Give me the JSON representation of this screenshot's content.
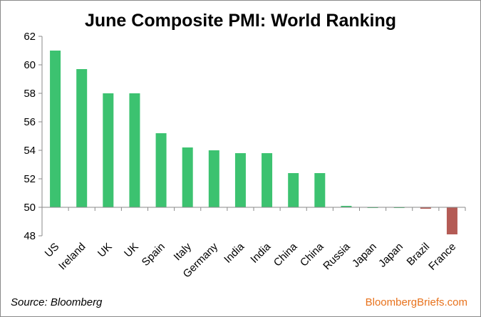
{
  "chart_data": {
    "type": "bar",
    "title": "June Composite PMI: World Ranking",
    "xlabel": "",
    "ylabel": "",
    "ylim": [
      48,
      62
    ],
    "baseline": 50,
    "yticks": [
      48,
      50,
      52,
      54,
      56,
      58,
      60,
      62
    ],
    "grid": false,
    "categories": [
      "US",
      "Ireland",
      "UK",
      "UK",
      "Spain",
      "Italy",
      "Germany",
      "India",
      "India",
      "China",
      "China",
      "Russia",
      "Japan",
      "Japan",
      "Brazil",
      "France"
    ],
    "values": [
      61.0,
      59.7,
      58.0,
      58.0,
      55.2,
      54.2,
      54.0,
      53.8,
      53.8,
      52.4,
      52.4,
      50.1,
      50.0,
      50.0,
      49.9,
      48.1
    ],
    "colors": {
      "above": "#3cc270",
      "below": "#b45b55"
    }
  },
  "footer": {
    "source": "Source:  Bloomberg",
    "brand": "BloombergBriefs.com"
  }
}
